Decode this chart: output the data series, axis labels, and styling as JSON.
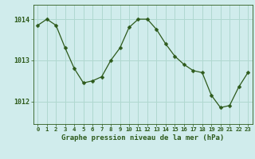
{
  "x": [
    0,
    1,
    2,
    3,
    4,
    5,
    6,
    7,
    8,
    9,
    10,
    11,
    12,
    13,
    14,
    15,
    16,
    17,
    18,
    19,
    20,
    21,
    22,
    23
  ],
  "y": [
    1013.85,
    1014.0,
    1013.85,
    1013.3,
    1012.8,
    1012.45,
    1012.5,
    1012.6,
    1013.0,
    1013.3,
    1013.8,
    1014.0,
    1014.0,
    1013.75,
    1013.4,
    1013.1,
    1012.9,
    1012.75,
    1012.7,
    1012.15,
    1011.85,
    1011.9,
    1012.35,
    1012.7
  ],
  "line_color": "#2d5a1b",
  "marker_color": "#2d5a1b",
  "bg_color": "#d0ecec",
  "grid_color": "#b0d8d0",
  "xlabel": "Graphe pression niveau de la mer (hPa)",
  "ylabel_ticks": [
    1012,
    1013,
    1014
  ],
  "xlim": [
    -0.5,
    23.5
  ],
  "ylim": [
    1011.45,
    1014.35
  ],
  "xlabel_color": "#2d5a1b",
  "tick_color": "#2d5a1b"
}
